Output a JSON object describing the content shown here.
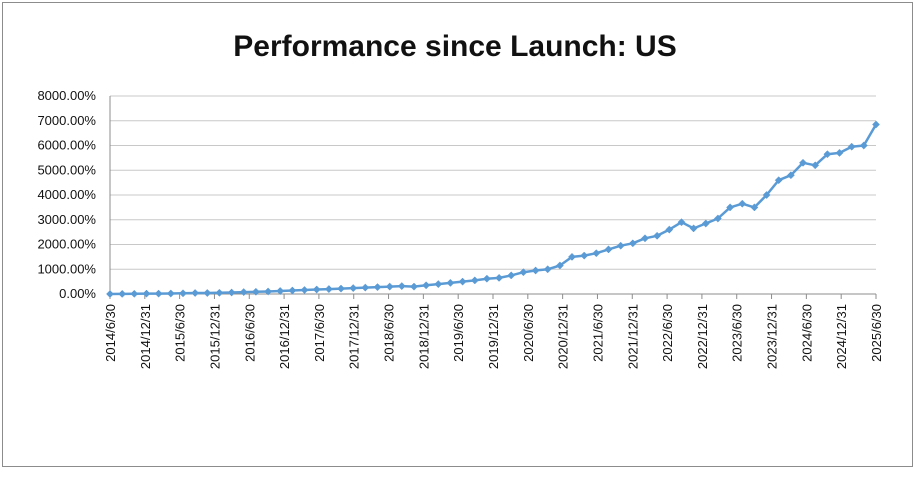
{
  "chart_data": {
    "type": "line",
    "title": "Performance since Launch: US",
    "xlabel": "",
    "ylabel": "",
    "ylim": [
      0,
      8000
    ],
    "y_ticks": [
      "0.00%",
      "1000.00%",
      "2000.00%",
      "3000.00%",
      "4000.00%",
      "5000.00%",
      "6000.00%",
      "7000.00%",
      "8000.00%"
    ],
    "x_ticks": [
      "2014/6/30",
      "2014/12/31",
      "2015/6/30",
      "2015/12/31",
      "2016/6/30",
      "2016/12/31",
      "2017/6/30",
      "2017/12/31",
      "2018/6/30",
      "2018/12/31",
      "2019/6/30",
      "2019/12/31",
      "2020/6/30",
      "2020/12/31",
      "2021/6/30",
      "2021/12/31",
      "2022/6/30",
      "2022/12/31",
      "2023/6/30",
      "2023/12/31",
      "2024/6/30",
      "2024/12/31",
      "2025/6/30"
    ],
    "grid": true,
    "legend": "none",
    "series_color": "#5b9bd5",
    "series": [
      {
        "values": [
          0,
          5,
          10,
          15,
          15,
          20,
          30,
          40,
          40,
          50,
          60,
          75,
          90,
          100,
          120,
          140,
          160,
          180,
          200,
          220,
          240,
          260,
          280,
          300,
          320,
          300,
          350,
          400,
          450,
          500,
          550,
          620,
          650,
          750,
          880,
          950,
          1000,
          1150,
          1500,
          1550,
          1650,
          1800,
          1950,
          2050,
          2250,
          2350,
          2600,
          2900,
          2650,
          2850,
          3050,
          3500,
          3650,
          3500,
          4000,
          4600,
          4800,
          5300,
          5200,
          5650,
          5700,
          5950,
          6000,
          6850
        ]
      }
    ]
  }
}
